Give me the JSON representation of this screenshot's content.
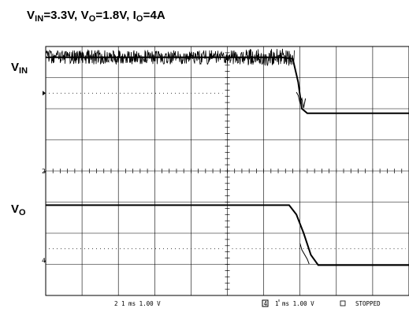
{
  "title": {
    "parts": [
      {
        "main": "V",
        "sub": "IN",
        "after": "=3.3V, "
      },
      {
        "main": "V",
        "sub": "O",
        "after": "=1.8V, "
      },
      {
        "main": "I",
        "sub": "O",
        "after": "=4A"
      }
    ]
  },
  "labels": {
    "vin": {
      "main": "V",
      "sub": "IN"
    },
    "vo": {
      "main": "V",
      "sub": "O"
    }
  },
  "readout": {
    "ch2": "2  1 ms 1.00 V",
    "ch4_box": "4",
    "ch4": "1 ms 1.00 V",
    "trig": "STOPPED"
  },
  "markers": {
    "ch2": "2",
    "ch4": "4"
  },
  "colors": {
    "trace": "#000000",
    "grid": "#000000",
    "background": "#ffffff"
  },
  "chart_data": {
    "type": "line",
    "title": "VIN=3.3V, VO=1.8V, IO=4A",
    "x_unit": "ms",
    "x_div": 1,
    "xlim": [
      0,
      10
    ],
    "grid": true,
    "series": [
      {
        "name": "VIN",
        "volts_per_div": 1.0,
        "x": [
          0,
          5.5,
          6.5,
          6.8,
          6.95,
          7.05,
          7.2,
          10
        ],
        "y": [
          3.3,
          3.3,
          3.3,
          3.25,
          2.5,
          1.7,
          1.55,
          1.55
        ]
      },
      {
        "name": "VO",
        "volts_per_div": 1.0,
        "x": [
          0,
          6.7,
          6.9,
          7.1,
          7.3,
          7.5,
          10
        ],
        "y": [
          1.8,
          1.8,
          1.5,
          0.9,
          0.2,
          0.0,
          0.0
        ]
      }
    ]
  }
}
